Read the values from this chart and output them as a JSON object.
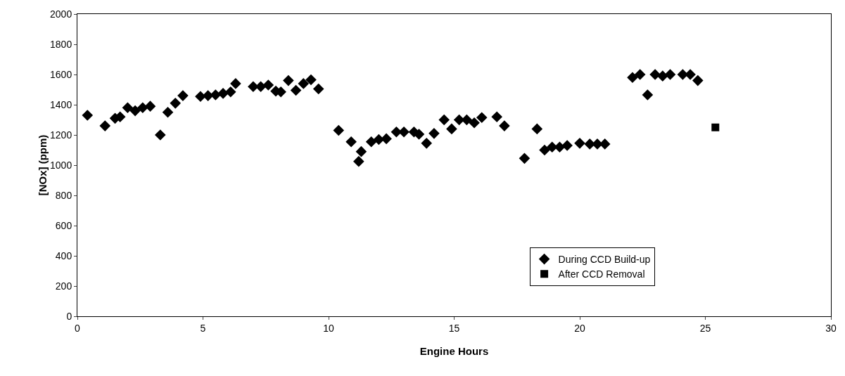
{
  "chart_data": {
    "type": "scatter",
    "xlabel": "Engine Hours",
    "ylabel": "[NOx] (ppm)",
    "xlim": [
      0,
      30
    ],
    "xticks": [
      0,
      5,
      10,
      15,
      20,
      25,
      30
    ],
    "ylim": [
      0,
      2000
    ],
    "yticks": [
      0,
      200,
      400,
      600,
      800,
      1000,
      1200,
      1400,
      1600,
      1800,
      2000
    ],
    "grid": false,
    "legend": "bottom right",
    "series": [
      {
        "name": "During CCD Build-up",
        "color": "#000000",
        "marker": "diamond",
        "x": [
          0.4,
          1.1,
          1.5,
          1.7,
          2.0,
          2.3,
          2.6,
          2.9,
          3.3,
          3.6,
          3.9,
          4.2,
          4.9,
          5.2,
          5.5,
          5.8,
          6.1,
          6.3,
          7.0,
          7.3,
          7.6,
          7.9,
          8.1,
          8.4,
          8.7,
          9.0,
          9.3,
          9.6,
          10.4,
          10.9,
          11.2,
          11.3,
          11.7,
          12.0,
          12.3,
          12.7,
          13.0,
          13.4,
          13.6,
          13.9,
          14.2,
          14.6,
          14.9,
          15.2,
          15.5,
          15.8,
          16.1,
          16.7,
          17.0,
          17.8,
          18.3,
          18.6,
          18.9,
          19.2,
          19.5,
          20.0,
          20.4,
          20.7,
          21.0,
          22.1,
          22.4,
          22.7,
          23.0,
          23.3,
          23.6,
          24.1,
          24.4,
          24.7
        ],
        "values": [
          1330,
          1260,
          1310,
          1320,
          1380,
          1360,
          1380,
          1390,
          1200,
          1350,
          1410,
          1460,
          1455,
          1460,
          1465,
          1475,
          1485,
          1540,
          1520,
          1520,
          1530,
          1490,
          1485,
          1560,
          1495,
          1540,
          1565,
          1505,
          1230,
          1155,
          1025,
          1090,
          1155,
          1170,
          1175,
          1220,
          1220,
          1220,
          1205,
          1145,
          1210,
          1300,
          1240,
          1300,
          1300,
          1280,
          1315,
          1320,
          1260,
          1045,
          1240,
          1100,
          1120,
          1120,
          1130,
          1145,
          1140,
          1140,
          1140,
          1580,
          1600,
          1465,
          1600,
          1590,
          1600,
          1600,
          1600,
          1560
        ]
      },
      {
        "name": "After CCD Removal",
        "color": "#000000",
        "marker": "square",
        "x": [
          25.4
        ],
        "values": [
          1250
        ]
      }
    ]
  }
}
